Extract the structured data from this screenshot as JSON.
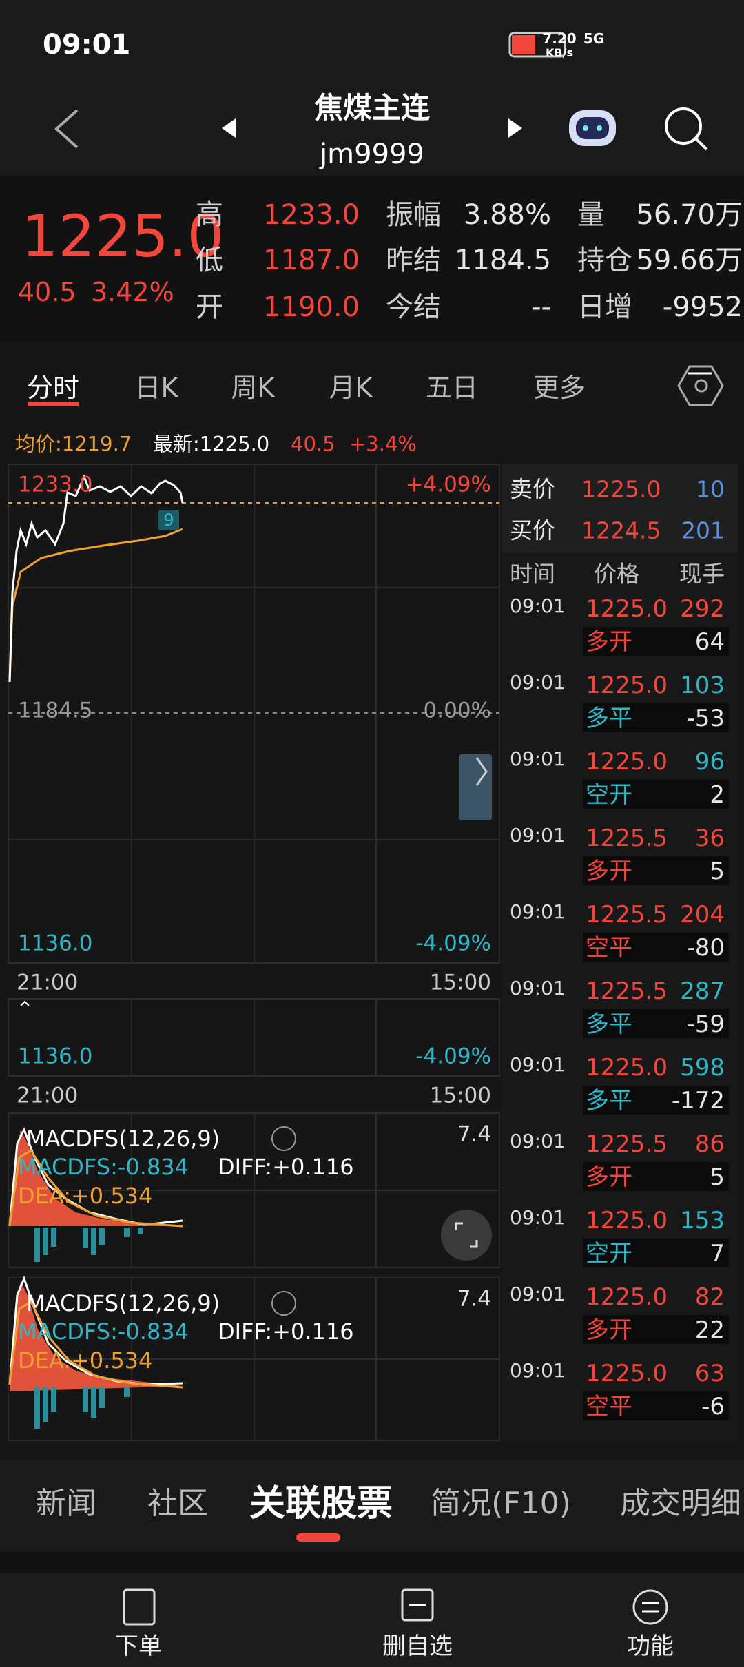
{
  "status_bar": {
    "time": "09:01",
    "net_speed": "7.20",
    "net_unit": "KB/s",
    "signal": "5G"
  },
  "header": {
    "title": "焦煤主连",
    "code": "jm9999"
  },
  "quote": {
    "price": "1225.0",
    "change": "40.5",
    "change_pct": "3.42%",
    "columns": [
      {
        "color": "#f2463c",
        "items": [
          {
            "label": "高",
            "value": "1233.0"
          },
          {
            "label": "低",
            "value": "1187.0"
          },
          {
            "label": "开",
            "value": "1190.0"
          }
        ]
      },
      {
        "color": "#e6e6e6",
        "items": [
          {
            "label": "振幅",
            "value": "3.88%"
          },
          {
            "label": "昨结",
            "value": "1184.5"
          },
          {
            "label": "今结",
            "value": "--"
          }
        ]
      },
      {
        "color": "#e6e6e6",
        "items": [
          {
            "label": "量",
            "value": "56.70万"
          },
          {
            "label": "持仓",
            "value": "59.66万"
          },
          {
            "label": "日增",
            "value": "-9952"
          }
        ]
      }
    ]
  },
  "tabs": [
    "分时",
    "日K",
    "周K",
    "月K",
    "五日",
    "更多"
  ],
  "chart_info": {
    "avg": "均价:1219.7",
    "latest": "最新:1225.0",
    "change": "40.5",
    "change_pct": "+3.4%"
  },
  "price_chart": {
    "high": "1233.0",
    "high_pct": "+4.09%",
    "base": "1184.5",
    "base_pct": "0.00%",
    "low": "1136.0",
    "low_pct": "-4.09%",
    "start_time": "21:00",
    "end_time": "15:00",
    "marker": "9"
  },
  "volume_panel": {
    "low": "1136.0",
    "low_pct": "-4.09%",
    "start_time": "21:00",
    "end_time": "15:00"
  },
  "macd_panels": [
    {
      "title": "MACDFS(12,26,9)",
      "max": "7.4",
      "macd": "MACDFS:-0.834",
      "diff": "DIFF:+0.116",
      "dea": "DEA:+0.534"
    },
    {
      "title": "MACDFS(12,26,9)",
      "max": "7.4",
      "macd": "MACDFS:-0.834",
      "diff": "DIFF:+0.116",
      "dea": "DEA:+0.534"
    }
  ],
  "order_book": {
    "ask_label": "卖价",
    "ask_price": "1225.0",
    "ask_volume": "10",
    "bid_label": "买价",
    "bid_price": "1224.5",
    "bid_volume": "201"
  },
  "trades": {
    "headers": [
      "时间",
      "价格",
      "现手"
    ],
    "rows": [
      {
        "time": "09:01",
        "price": "1225.0",
        "qty": "292",
        "type": "多开",
        "change": "64",
        "color": "#f2463c"
      },
      {
        "time": "09:01",
        "price": "1225.0",
        "qty": "103",
        "type": "多平",
        "change": "-53",
        "color": "#2fb6c6"
      },
      {
        "time": "09:01",
        "price": "1225.0",
        "qty": "96",
        "type": "空开",
        "change": "2",
        "color": "#2fb6c6"
      },
      {
        "time": "09:01",
        "price": "1225.5",
        "qty": "36",
        "type": "多开",
        "change": "5",
        "color": "#f2463c"
      },
      {
        "time": "09:01",
        "price": "1225.5",
        "qty": "204",
        "type": "空平",
        "change": "-80",
        "color": "#f2463c"
      },
      {
        "time": "09:01",
        "price": "1225.5",
        "qty": "287",
        "type": "多平",
        "change": "-59",
        "color": "#2fb6c6"
      },
      {
        "time": "09:01",
        "price": "1225.0",
        "qty": "598",
        "type": "多平",
        "change": "-172",
        "color": "#2fb6c6"
      },
      {
        "time": "09:01",
        "price": "1225.5",
        "qty": "86",
        "type": "多开",
        "change": "5",
        "color": "#f2463c"
      },
      {
        "time": "09:01",
        "price": "1225.0",
        "qty": "153",
        "type": "空开",
        "change": "7",
        "color": "#2fb6c6"
      },
      {
        "time": "09:01",
        "price": "1225.0",
        "qty": "82",
        "type": "多开",
        "change": "22",
        "color": "#f2463c"
      },
      {
        "time": "09:01",
        "price": "1225.0",
        "qty": "63",
        "type": "空平",
        "change": "-6",
        "color": "#f2463c"
      }
    ]
  },
  "bottom_tabs": [
    "新闻",
    "社区",
    "关联股票",
    "简况(F10)",
    "成交明细"
  ],
  "nav": [
    "下单",
    "删自选",
    "功能"
  ]
}
